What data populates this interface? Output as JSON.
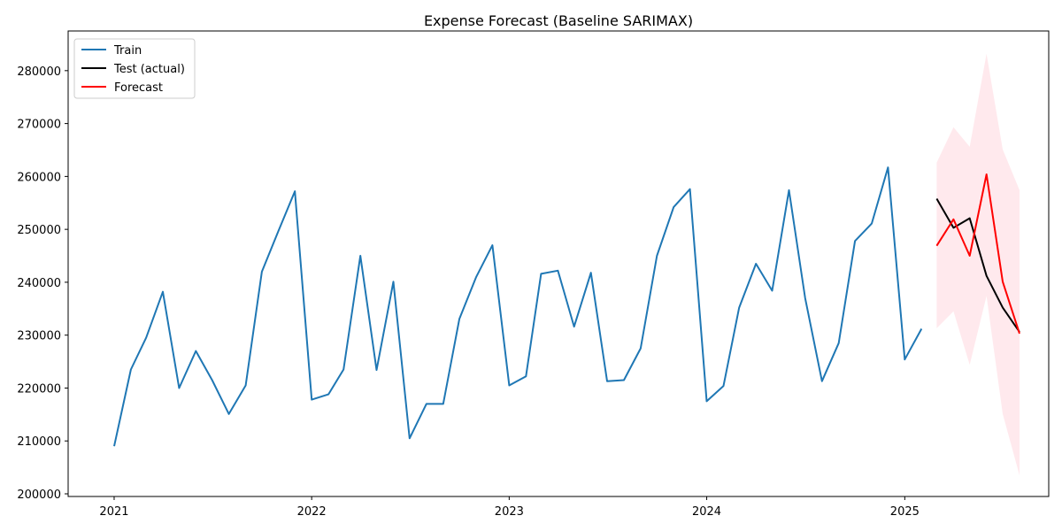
{
  "chart_data": {
    "type": "line",
    "title": "Expense Forecast (Baseline SARIMAX)",
    "xlabel": "",
    "ylabel": "",
    "xlim": [
      "2020-10-08",
      "2025-09-24"
    ],
    "ylim": [
      199500,
      287500
    ],
    "x_ticks": [
      "2021-01-01",
      "2022-01-01",
      "2023-01-01",
      "2024-01-01",
      "2025-01-01"
    ],
    "x_tick_labels": [
      "2021",
      "2022",
      "2023",
      "2024",
      "2025"
    ],
    "y_ticks": [
      200000,
      210000,
      220000,
      230000,
      240000,
      250000,
      260000,
      270000,
      280000
    ],
    "y_tick_labels": [
      "200000",
      "210000",
      "220000",
      "230000",
      "240000",
      "250000",
      "260000",
      "270000",
      "280000"
    ],
    "grid": false,
    "legend_position": "top-left",
    "colors": {
      "train": "#1f77b4",
      "test": "#000000",
      "forecast": "#ff0000",
      "ci": "#ffc0cb"
    },
    "series": [
      {
        "name": "Train",
        "key": "train",
        "x": [
          "2021-01-01",
          "2021-02-01",
          "2021-03-01",
          "2021-04-01",
          "2021-05-01",
          "2021-06-01",
          "2021-07-01",
          "2021-08-01",
          "2021-09-01",
          "2021-10-01",
          "2021-11-01",
          "2021-12-01",
          "2022-01-01",
          "2022-02-01",
          "2022-03-01",
          "2022-04-01",
          "2022-05-01",
          "2022-06-01",
          "2022-07-01",
          "2022-08-01",
          "2022-09-01",
          "2022-10-01",
          "2022-11-01",
          "2022-12-01",
          "2023-01-01",
          "2023-02-01",
          "2023-03-01",
          "2023-04-01",
          "2023-05-01",
          "2023-06-01",
          "2023-07-01",
          "2023-08-01",
          "2023-09-01",
          "2023-10-01",
          "2023-11-01",
          "2023-12-01",
          "2024-01-01",
          "2024-02-01",
          "2024-03-01",
          "2024-04-01",
          "2024-05-01",
          "2024-06-01",
          "2024-07-01",
          "2024-08-01",
          "2024-09-01",
          "2024-10-01",
          "2024-11-01",
          "2024-12-01",
          "2025-01-01",
          "2025-02-01"
        ],
        "values": [
          209000,
          223500,
          229500,
          238200,
          220000,
          227000,
          221500,
          215100,
          220500,
          242000,
          249800,
          257200,
          217800,
          218800,
          223500,
          245000,
          223400,
          240100,
          210500,
          217000,
          217000,
          233100,
          241000,
          247000,
          220500,
          222200,
          241600,
          242200,
          231600,
          241800,
          221300,
          221500,
          227500,
          245000,
          254200,
          257600,
          217500,
          220400,
          235200,
          243500,
          238400,
          257400,
          237000,
          221300,
          228500,
          247800,
          251100,
          261700,
          225400,
          231200
        ]
      },
      {
        "name": "Test (actual)",
        "key": "test",
        "x": [
          "2025-03-01",
          "2025-04-01",
          "2025-05-01",
          "2025-06-01",
          "2025-07-01",
          "2025-08-01"
        ],
        "values": [
          255800,
          250300,
          252100,
          241200,
          235200,
          230600
        ]
      },
      {
        "name": "Forecast",
        "key": "forecast",
        "x": [
          "2025-03-01",
          "2025-04-01",
          "2025-05-01",
          "2025-06-01",
          "2025-07-01",
          "2025-08-01"
        ],
        "values": [
          246900,
          251900,
          245000,
          260400,
          240100,
          230300
        ]
      }
    ],
    "confidence_interval": {
      "x": [
        "2025-03-01",
        "2025-04-01",
        "2025-05-01",
        "2025-06-01",
        "2025-07-01",
        "2025-08-01"
      ],
      "lower": [
        231300,
        234500,
        224400,
        237400,
        215100,
        203500
      ],
      "upper": [
        262600,
        269300,
        265600,
        283200,
        265100,
        257400
      ]
    }
  }
}
